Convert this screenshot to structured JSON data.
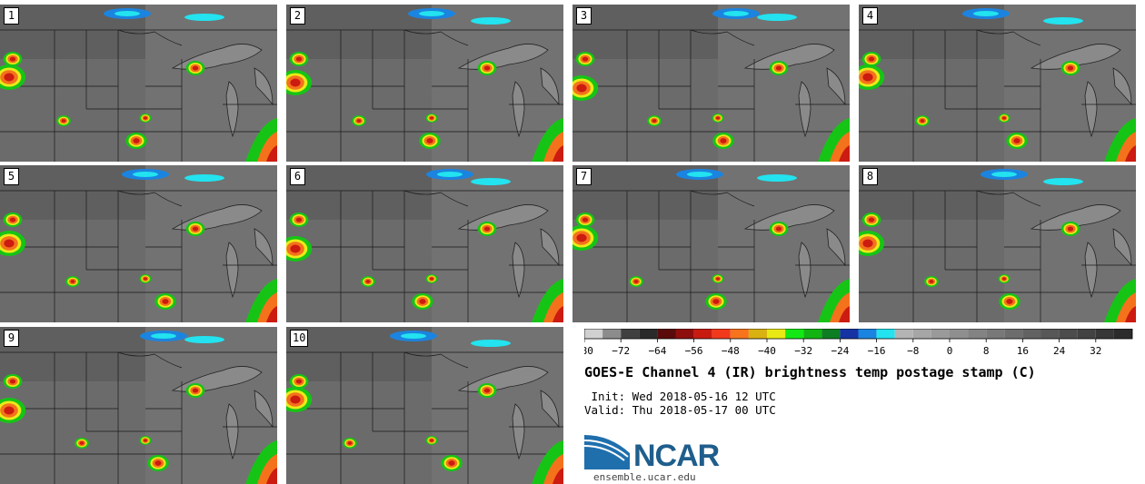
{
  "panels": [
    "1",
    "2",
    "3",
    "4",
    "5",
    "6",
    "7",
    "8",
    "9",
    "10"
  ],
  "colorbar": {
    "colors": [
      "#d0d0d0",
      "#8c8c8c",
      "#404040",
      "#2a2a2a",
      "#5a0a0a",
      "#8e0e0e",
      "#c81b10",
      "#f2391b",
      "#f7731c",
      "#d9b111",
      "#e8e815",
      "#14e814",
      "#12b412",
      "#0d7e22",
      "#1633a4",
      "#1b84e0",
      "#22e3ef",
      "#b4b4b4",
      "#a6a6a6",
      "#9a9a9a",
      "#8f8f8f",
      "#838383",
      "#787878",
      "#6d6d6d",
      "#626262",
      "#575757",
      "#4c4c4c",
      "#424242",
      "#373737",
      "#2c2c2c"
    ],
    "tick_labels": [
      "−80",
      "−72",
      "−64",
      "−56",
      "−48",
      "−40",
      "−32",
      "−24",
      "−16",
      "−8",
      "0",
      "8",
      "16",
      "24",
      "32"
    ]
  },
  "title": "GOES-E Channel 4 (IR) brightness temp postage stamp (C)",
  "init": " Init: Wed 2018-05-16 12 UTC",
  "valid": "Valid: Thu 2018-05-17 00 UTC",
  "logo_text": "NCAR",
  "site": "ensemble.ucar.edu"
}
